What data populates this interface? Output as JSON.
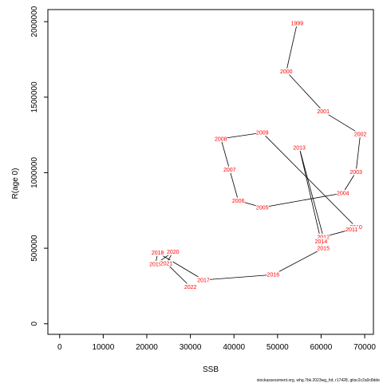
{
  "chart_data": {
    "type": "line",
    "xlabel": "SSB",
    "ylabel": "R(age 0)",
    "xlim": [
      -2700,
      72000
    ],
    "ylim": [
      -70000,
      2080000
    ],
    "x_ticks": [
      0,
      10000,
      20000,
      30000,
      40000,
      50000,
      60000,
      70000
    ],
    "y_ticks": [
      0,
      500000,
      1000000,
      1500000,
      2000000
    ],
    "footnote": "stockassessment.org, whg.7bk.2023wg_hd, r17428, gitsc2c2a0c8dde",
    "label_color": "#ff0000",
    "line_color": "#000000",
    "points": [
      {
        "year": "1999",
        "x": 54500,
        "y": 1990000
      },
      {
        "year": "2000",
        "x": 52000,
        "y": 1670000
      },
      {
        "year": "2001",
        "x": 60500,
        "y": 1405000
      },
      {
        "year": "2002",
        "x": 69000,
        "y": 1255000
      },
      {
        "year": "2003",
        "x": 68000,
        "y": 1005000
      },
      {
        "year": "2004",
        "x": 65000,
        "y": 865000
      },
      {
        "year": "2005",
        "x": 46500,
        "y": 770000
      },
      {
        "year": "2006",
        "x": 41000,
        "y": 815000
      },
      {
        "year": "2007",
        "x": 39000,
        "y": 1020000
      },
      {
        "year": "2008",
        "x": 37000,
        "y": 1225000
      },
      {
        "year": "2009",
        "x": 46500,
        "y": 1265000
      },
      {
        "year": "2010",
        "x": 68000,
        "y": 640000
      },
      {
        "year": "2011",
        "x": 67000,
        "y": 625000
      },
      {
        "year": "2012",
        "x": 60500,
        "y": 575000
      },
      {
        "year": "2013",
        "x": 55000,
        "y": 1165000
      },
      {
        "year": "2014",
        "x": 60000,
        "y": 545000
      },
      {
        "year": "2015",
        "x": 60500,
        "y": 500000
      },
      {
        "year": "2016",
        "x": 49000,
        "y": 325000
      },
      {
        "year": "2017",
        "x": 33000,
        "y": 290000
      },
      {
        "year": "2018",
        "x": 22500,
        "y": 470000
      },
      {
        "year": "2019",
        "x": 22000,
        "y": 395000
      },
      {
        "year": "2020",
        "x": 26000,
        "y": 475000
      },
      {
        "year": "2021",
        "x": 24500,
        "y": 400000
      },
      {
        "year": "2022",
        "x": 30000,
        "y": 245000
      }
    ]
  }
}
